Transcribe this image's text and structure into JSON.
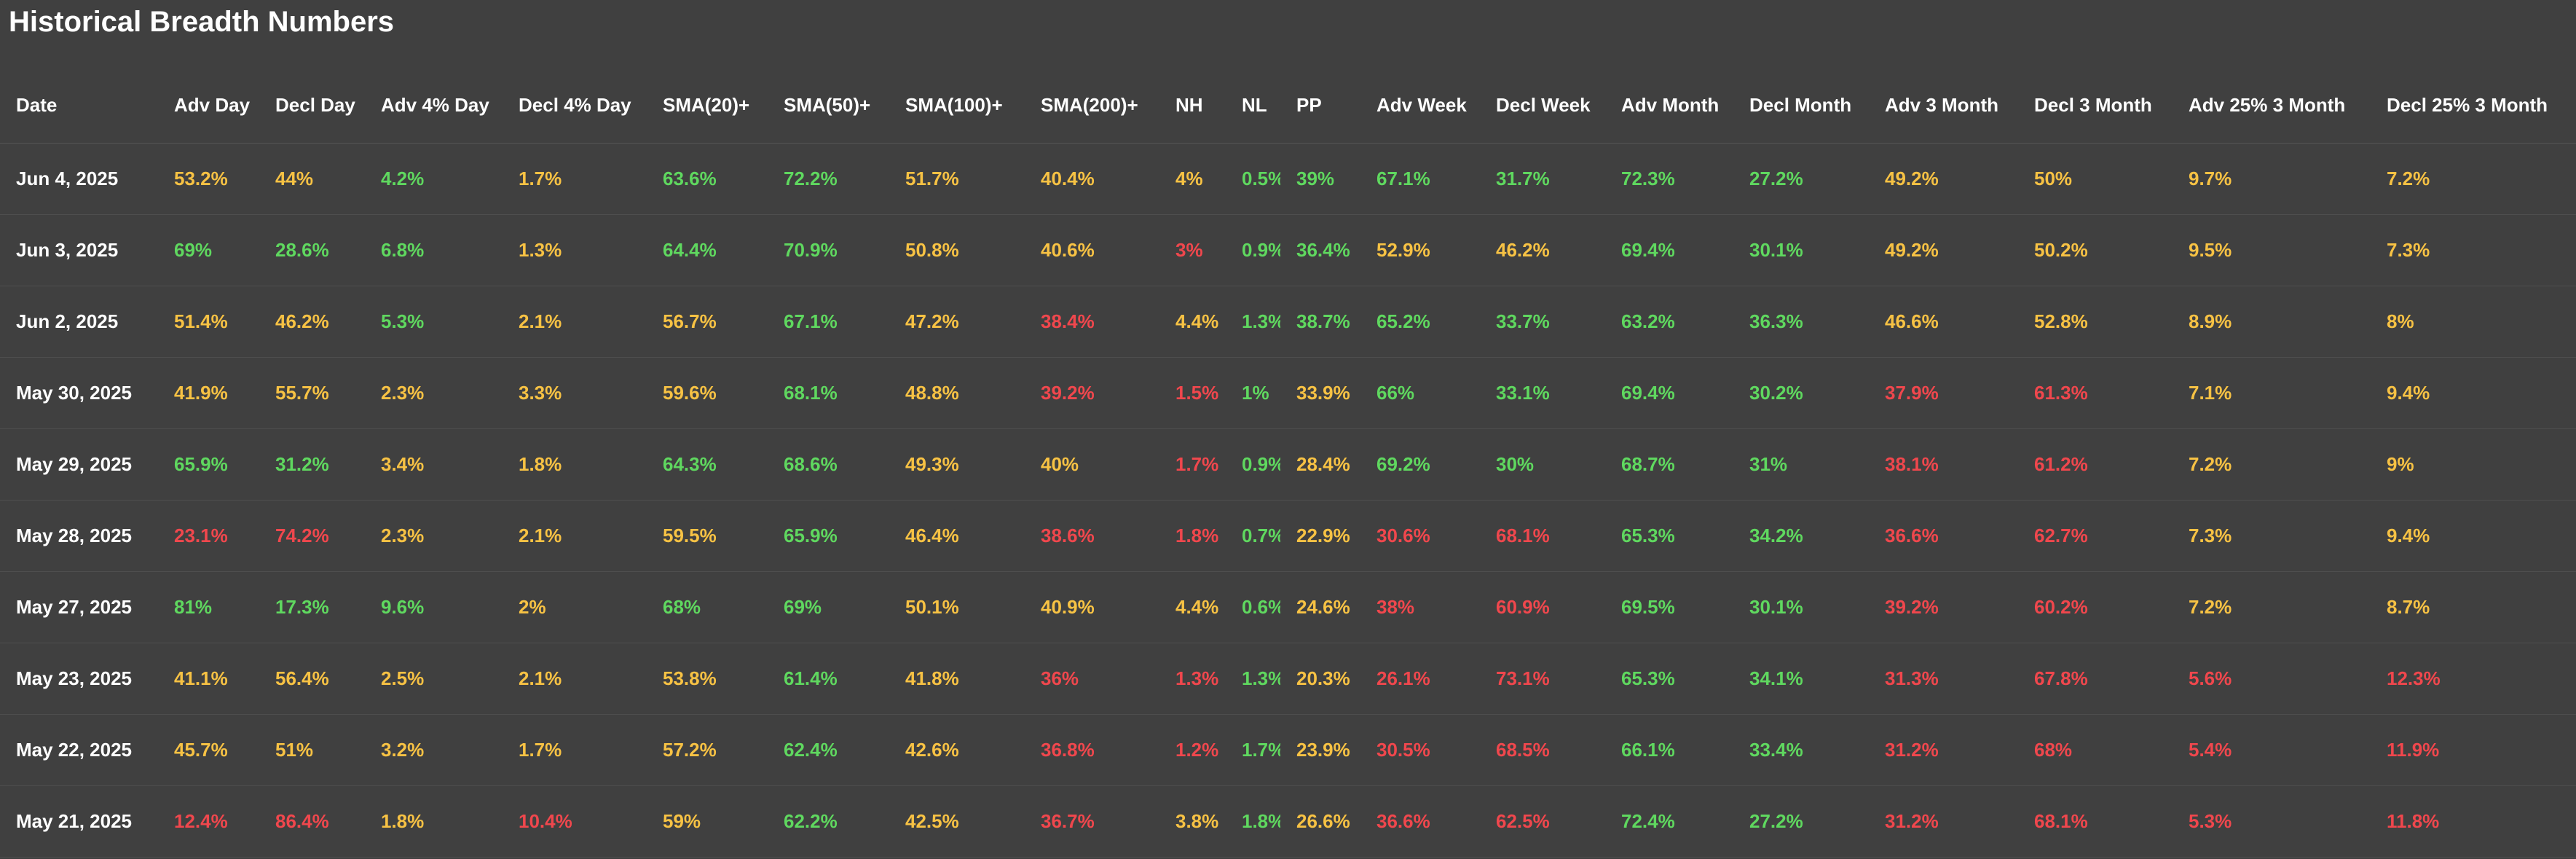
{
  "title": "Historical Breadth Numbers",
  "colors": {
    "green": "#5fd85f",
    "yellow": "#f7c244",
    "red": "#f0474d",
    "background": "#404040"
  },
  "columns": [
    "Date",
    "Adv Day",
    "Decl Day",
    "Adv 4% Day",
    "Decl 4% Day",
    "SMA(20)+",
    "SMA(50)+",
    "SMA(100)+",
    "SMA(200)+",
    "NH",
    "NL",
    "PP",
    "Adv Week",
    "Decl Week",
    "Adv Month",
    "Decl Month",
    "Adv 3 Month",
    "Decl 3 Month",
    "Adv 25% 3 Month",
    "Decl 25% 3 Month"
  ],
  "rows": [
    {
      "date": "Jun 4, 2025",
      "cells": [
        {
          "v": "53.2%",
          "c": "yellow"
        },
        {
          "v": "44%",
          "c": "yellow"
        },
        {
          "v": "4.2%",
          "c": "green"
        },
        {
          "v": "1.7%",
          "c": "yellow"
        },
        {
          "v": "63.6%",
          "c": "green"
        },
        {
          "v": "72.2%",
          "c": "green"
        },
        {
          "v": "51.7%",
          "c": "yellow"
        },
        {
          "v": "40.4%",
          "c": "yellow"
        },
        {
          "v": "4%",
          "c": "yellow"
        },
        {
          "v": "0.5%",
          "c": "green"
        },
        {
          "v": "39%",
          "c": "green"
        },
        {
          "v": "67.1%",
          "c": "green"
        },
        {
          "v": "31.7%",
          "c": "green"
        },
        {
          "v": "72.3%",
          "c": "green"
        },
        {
          "v": "27.2%",
          "c": "green"
        },
        {
          "v": "49.2%",
          "c": "yellow"
        },
        {
          "v": "50%",
          "c": "yellow"
        },
        {
          "v": "9.7%",
          "c": "yellow"
        },
        {
          "v": "7.2%",
          "c": "yellow"
        }
      ]
    },
    {
      "date": "Jun 3, 2025",
      "cells": [
        {
          "v": "69%",
          "c": "green"
        },
        {
          "v": "28.6%",
          "c": "green"
        },
        {
          "v": "6.8%",
          "c": "green"
        },
        {
          "v": "1.3%",
          "c": "yellow"
        },
        {
          "v": "64.4%",
          "c": "green"
        },
        {
          "v": "70.9%",
          "c": "green"
        },
        {
          "v": "50.8%",
          "c": "yellow"
        },
        {
          "v": "40.6%",
          "c": "yellow"
        },
        {
          "v": "3%",
          "c": "red"
        },
        {
          "v": "0.9%",
          "c": "green"
        },
        {
          "v": "36.4%",
          "c": "green"
        },
        {
          "v": "52.9%",
          "c": "yellow"
        },
        {
          "v": "46.2%",
          "c": "yellow"
        },
        {
          "v": "69.4%",
          "c": "green"
        },
        {
          "v": "30.1%",
          "c": "green"
        },
        {
          "v": "49.2%",
          "c": "yellow"
        },
        {
          "v": "50.2%",
          "c": "yellow"
        },
        {
          "v": "9.5%",
          "c": "yellow"
        },
        {
          "v": "7.3%",
          "c": "yellow"
        }
      ]
    },
    {
      "date": "Jun 2, 2025",
      "cells": [
        {
          "v": "51.4%",
          "c": "yellow"
        },
        {
          "v": "46.2%",
          "c": "yellow"
        },
        {
          "v": "5.3%",
          "c": "green"
        },
        {
          "v": "2.1%",
          "c": "yellow"
        },
        {
          "v": "56.7%",
          "c": "yellow"
        },
        {
          "v": "67.1%",
          "c": "green"
        },
        {
          "v": "47.2%",
          "c": "yellow"
        },
        {
          "v": "38.4%",
          "c": "red"
        },
        {
          "v": "4.4%",
          "c": "yellow"
        },
        {
          "v": "1.3%",
          "c": "green"
        },
        {
          "v": "38.7%",
          "c": "green"
        },
        {
          "v": "65.2%",
          "c": "green"
        },
        {
          "v": "33.7%",
          "c": "green"
        },
        {
          "v": "63.2%",
          "c": "green"
        },
        {
          "v": "36.3%",
          "c": "green"
        },
        {
          "v": "46.6%",
          "c": "yellow"
        },
        {
          "v": "52.8%",
          "c": "yellow"
        },
        {
          "v": "8.9%",
          "c": "yellow"
        },
        {
          "v": "8%",
          "c": "yellow"
        }
      ]
    },
    {
      "date": "May 30, 2025",
      "cells": [
        {
          "v": "41.9%",
          "c": "yellow"
        },
        {
          "v": "55.7%",
          "c": "yellow"
        },
        {
          "v": "2.3%",
          "c": "yellow"
        },
        {
          "v": "3.3%",
          "c": "yellow"
        },
        {
          "v": "59.6%",
          "c": "yellow"
        },
        {
          "v": "68.1%",
          "c": "green"
        },
        {
          "v": "48.8%",
          "c": "yellow"
        },
        {
          "v": "39.2%",
          "c": "red"
        },
        {
          "v": "1.5%",
          "c": "red"
        },
        {
          "v": "1%",
          "c": "green"
        },
        {
          "v": "33.9%",
          "c": "yellow"
        },
        {
          "v": "66%",
          "c": "green"
        },
        {
          "v": "33.1%",
          "c": "green"
        },
        {
          "v": "69.4%",
          "c": "green"
        },
        {
          "v": "30.2%",
          "c": "green"
        },
        {
          "v": "37.9%",
          "c": "red"
        },
        {
          "v": "61.3%",
          "c": "red"
        },
        {
          "v": "7.1%",
          "c": "yellow"
        },
        {
          "v": "9.4%",
          "c": "yellow"
        }
      ]
    },
    {
      "date": "May 29, 2025",
      "cells": [
        {
          "v": "65.9%",
          "c": "green"
        },
        {
          "v": "31.2%",
          "c": "green"
        },
        {
          "v": "3.4%",
          "c": "yellow"
        },
        {
          "v": "1.8%",
          "c": "yellow"
        },
        {
          "v": "64.3%",
          "c": "green"
        },
        {
          "v": "68.6%",
          "c": "green"
        },
        {
          "v": "49.3%",
          "c": "yellow"
        },
        {
          "v": "40%",
          "c": "yellow"
        },
        {
          "v": "1.7%",
          "c": "red"
        },
        {
          "v": "0.9%",
          "c": "green"
        },
        {
          "v": "28.4%",
          "c": "yellow"
        },
        {
          "v": "69.2%",
          "c": "green"
        },
        {
          "v": "30%",
          "c": "green"
        },
        {
          "v": "68.7%",
          "c": "green"
        },
        {
          "v": "31%",
          "c": "green"
        },
        {
          "v": "38.1%",
          "c": "red"
        },
        {
          "v": "61.2%",
          "c": "red"
        },
        {
          "v": "7.2%",
          "c": "yellow"
        },
        {
          "v": "9%",
          "c": "yellow"
        }
      ]
    },
    {
      "date": "May 28, 2025",
      "cells": [
        {
          "v": "23.1%",
          "c": "red"
        },
        {
          "v": "74.2%",
          "c": "red"
        },
        {
          "v": "2.3%",
          "c": "yellow"
        },
        {
          "v": "2.1%",
          "c": "yellow"
        },
        {
          "v": "59.5%",
          "c": "yellow"
        },
        {
          "v": "65.9%",
          "c": "green"
        },
        {
          "v": "46.4%",
          "c": "yellow"
        },
        {
          "v": "38.6%",
          "c": "red"
        },
        {
          "v": "1.8%",
          "c": "red"
        },
        {
          "v": "0.7%",
          "c": "green"
        },
        {
          "v": "22.9%",
          "c": "yellow"
        },
        {
          "v": "30.6%",
          "c": "red"
        },
        {
          "v": "68.1%",
          "c": "red"
        },
        {
          "v": "65.3%",
          "c": "green"
        },
        {
          "v": "34.2%",
          "c": "green"
        },
        {
          "v": "36.6%",
          "c": "red"
        },
        {
          "v": "62.7%",
          "c": "red"
        },
        {
          "v": "7.3%",
          "c": "yellow"
        },
        {
          "v": "9.4%",
          "c": "yellow"
        }
      ]
    },
    {
      "date": "May 27, 2025",
      "cells": [
        {
          "v": "81%",
          "c": "green"
        },
        {
          "v": "17.3%",
          "c": "green"
        },
        {
          "v": "9.6%",
          "c": "green"
        },
        {
          "v": "2%",
          "c": "yellow"
        },
        {
          "v": "68%",
          "c": "green"
        },
        {
          "v": "69%",
          "c": "green"
        },
        {
          "v": "50.1%",
          "c": "yellow"
        },
        {
          "v": "40.9%",
          "c": "yellow"
        },
        {
          "v": "4.4%",
          "c": "yellow"
        },
        {
          "v": "0.6%",
          "c": "green"
        },
        {
          "v": "24.6%",
          "c": "yellow"
        },
        {
          "v": "38%",
          "c": "red"
        },
        {
          "v": "60.9%",
          "c": "red"
        },
        {
          "v": "69.5%",
          "c": "green"
        },
        {
          "v": "30.1%",
          "c": "green"
        },
        {
          "v": "39.2%",
          "c": "red"
        },
        {
          "v": "60.2%",
          "c": "red"
        },
        {
          "v": "7.2%",
          "c": "yellow"
        },
        {
          "v": "8.7%",
          "c": "yellow"
        }
      ]
    },
    {
      "date": "May 23, 2025",
      "cells": [
        {
          "v": "41.1%",
          "c": "yellow"
        },
        {
          "v": "56.4%",
          "c": "yellow"
        },
        {
          "v": "2.5%",
          "c": "yellow"
        },
        {
          "v": "2.1%",
          "c": "yellow"
        },
        {
          "v": "53.8%",
          "c": "yellow"
        },
        {
          "v": "61.4%",
          "c": "green"
        },
        {
          "v": "41.8%",
          "c": "yellow"
        },
        {
          "v": "36%",
          "c": "red"
        },
        {
          "v": "1.3%",
          "c": "red"
        },
        {
          "v": "1.3%",
          "c": "green"
        },
        {
          "v": "20.3%",
          "c": "yellow"
        },
        {
          "v": "26.1%",
          "c": "red"
        },
        {
          "v": "73.1%",
          "c": "red"
        },
        {
          "v": "65.3%",
          "c": "green"
        },
        {
          "v": "34.1%",
          "c": "green"
        },
        {
          "v": "31.3%",
          "c": "red"
        },
        {
          "v": "67.8%",
          "c": "red"
        },
        {
          "v": "5.6%",
          "c": "red"
        },
        {
          "v": "12.3%",
          "c": "red"
        }
      ]
    },
    {
      "date": "May 22, 2025",
      "cells": [
        {
          "v": "45.7%",
          "c": "yellow"
        },
        {
          "v": "51%",
          "c": "yellow"
        },
        {
          "v": "3.2%",
          "c": "yellow"
        },
        {
          "v": "1.7%",
          "c": "yellow"
        },
        {
          "v": "57.2%",
          "c": "yellow"
        },
        {
          "v": "62.4%",
          "c": "green"
        },
        {
          "v": "42.6%",
          "c": "yellow"
        },
        {
          "v": "36.8%",
          "c": "red"
        },
        {
          "v": "1.2%",
          "c": "red"
        },
        {
          "v": "1.7%",
          "c": "green"
        },
        {
          "v": "23.9%",
          "c": "yellow"
        },
        {
          "v": "30.5%",
          "c": "red"
        },
        {
          "v": "68.5%",
          "c": "red"
        },
        {
          "v": "66.1%",
          "c": "green"
        },
        {
          "v": "33.4%",
          "c": "green"
        },
        {
          "v": "31.2%",
          "c": "red"
        },
        {
          "v": "68%",
          "c": "red"
        },
        {
          "v": "5.4%",
          "c": "red"
        },
        {
          "v": "11.9%",
          "c": "red"
        }
      ]
    },
    {
      "date": "May 21, 2025",
      "cells": [
        {
          "v": "12.4%",
          "c": "red"
        },
        {
          "v": "86.4%",
          "c": "red"
        },
        {
          "v": "1.8%",
          "c": "yellow"
        },
        {
          "v": "10.4%",
          "c": "red"
        },
        {
          "v": "59%",
          "c": "yellow"
        },
        {
          "v": "62.2%",
          "c": "green"
        },
        {
          "v": "42.5%",
          "c": "yellow"
        },
        {
          "v": "36.7%",
          "c": "red"
        },
        {
          "v": "3.8%",
          "c": "yellow"
        },
        {
          "v": "1.8%",
          "c": "green"
        },
        {
          "v": "26.6%",
          "c": "yellow"
        },
        {
          "v": "36.6%",
          "c": "red"
        },
        {
          "v": "62.5%",
          "c": "red"
        },
        {
          "v": "72.4%",
          "c": "green"
        },
        {
          "v": "27.2%",
          "c": "green"
        },
        {
          "v": "31.2%",
          "c": "red"
        },
        {
          "v": "68.1%",
          "c": "red"
        },
        {
          "v": "5.3%",
          "c": "red"
        },
        {
          "v": "11.8%",
          "c": "red"
        }
      ]
    }
  ]
}
